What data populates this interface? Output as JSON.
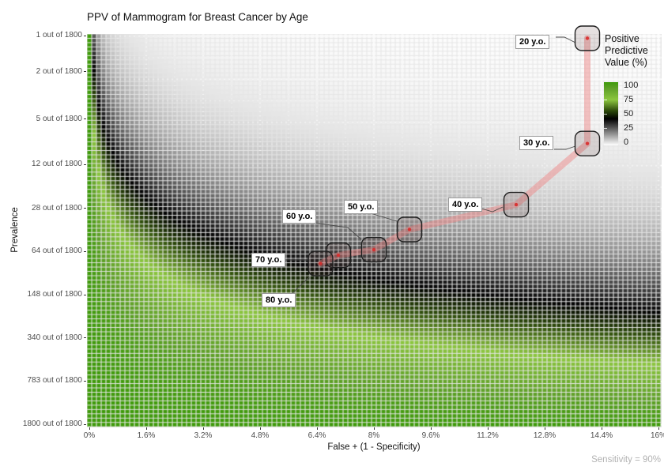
{
  "chart_data": {
    "type": "heatmap",
    "title": "PPV of Mammogram for Breast Cancer by Age",
    "xlabel": "False + (1 - Specificity)",
    "ylabel": "Prevalence",
    "caption": "Sensitivity = 90%",
    "sensitivity_pct": 90,
    "x_axis": {
      "range_pct": [
        0,
        16
      ],
      "tick_values_pct": [
        0,
        1.6,
        3.2,
        4.8,
        6.4,
        8,
        9.6,
        11.2,
        12.8,
        14.4,
        16
      ],
      "tick_labels": [
        "0%",
        "1.6%",
        "3.2%",
        "4.8%",
        "6.4%",
        "8%",
        "9.6%",
        "11.2%",
        "12.8%",
        "14.4%",
        "16%"
      ]
    },
    "y_axis": {
      "scale": "log",
      "denominator": 1800,
      "tick_values": [
        1,
        2,
        5,
        12,
        28,
        64,
        148,
        340,
        783,
        1800
      ],
      "tick_labels": [
        "1 out of 1800",
        "2 out of 1800",
        "5 out of 1800",
        "12 out of 1800",
        "28 out of 1800",
        "64 out of 1800",
        "148 out of 1800",
        "340 out of 1800",
        "783 out of 1800",
        "1800 out of 1800"
      ]
    },
    "fill": {
      "formula": "PPV = sens*prev / (sens*prev + FPR*(1-prev))",
      "color_stops": [
        {
          "ppv": 0,
          "color": "#ffffff"
        },
        {
          "ppv": 42,
          "color": "#000000"
        },
        {
          "ppv": 55,
          "color": "#2d4b0a"
        },
        {
          "ppv": 72,
          "color": "#8cc63f"
        },
        {
          "ppv": 90,
          "color": "#5fa028"
        },
        {
          "ppv": 100,
          "color": "#3e9a0a"
        }
      ]
    },
    "legend": {
      "title": "Positive\nPredictive\nValue (%)",
      "tick_labels": [
        "100",
        "75",
        "50",
        "25",
        "0"
      ],
      "tick_values": [
        100,
        75,
        50,
        25,
        0
      ]
    },
    "points": [
      {
        "label": "20 y.o.",
        "age": 20,
        "false_positive_pct": 14.0,
        "prevalence_per_1800": 1.05
      },
      {
        "label": "30 y.o.",
        "age": 30,
        "false_positive_pct": 14.0,
        "prevalence_per_1800": 8
      },
      {
        "label": "40 y.o.",
        "age": 40,
        "false_positive_pct": 12.0,
        "prevalence_per_1800": 26
      },
      {
        "label": "50 y.o.",
        "age": 50,
        "false_positive_pct": 9.0,
        "prevalence_per_1800": 42
      },
      {
        "label": "60 y.o.",
        "age": 60,
        "false_positive_pct": 8.0,
        "prevalence_per_1800": 62
      },
      {
        "label": "70 y.o.",
        "age": 70,
        "false_positive_pct": 7.0,
        "prevalence_per_1800": 69
      },
      {
        "label": "80 y.o.",
        "age": 80,
        "false_positive_pct": 6.5,
        "prevalence_per_1800": 81
      }
    ],
    "trend_line_color": "rgba(237,137,137,0.5)",
    "point_color": "#d92b2b"
  }
}
